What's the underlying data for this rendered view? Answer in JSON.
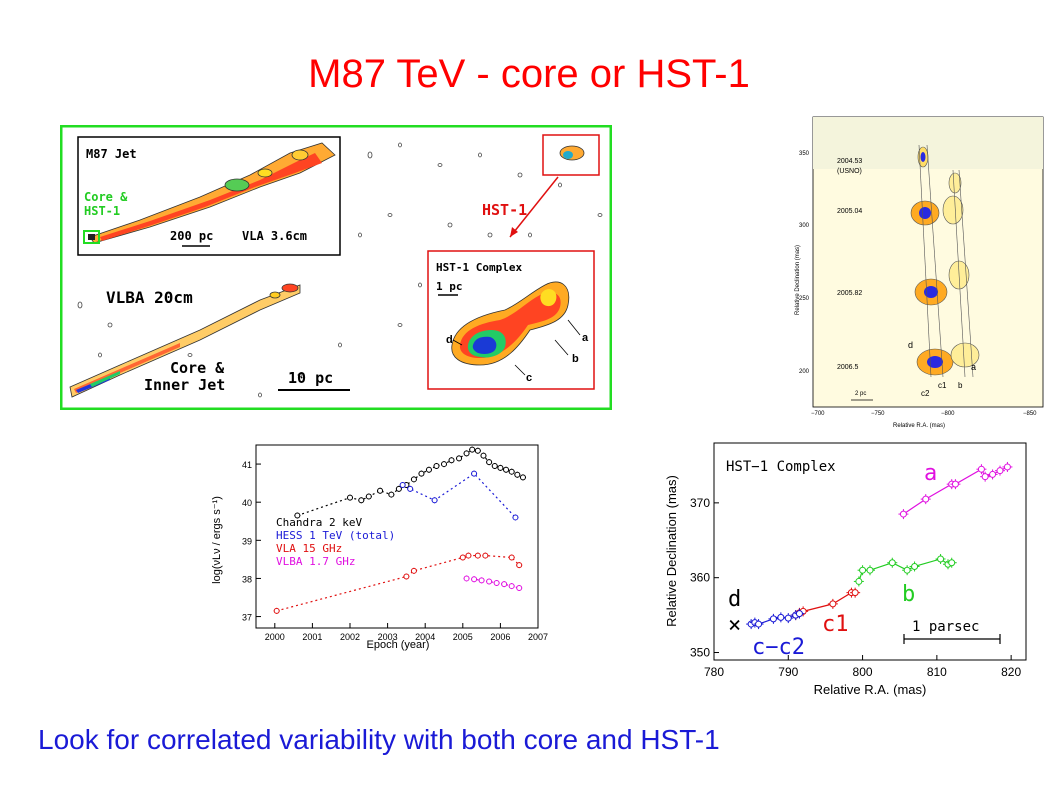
{
  "slide": {
    "title": "M87 TeV - core or HST-1",
    "caption": "Look for correlated variability with both core and HST-1"
  },
  "radio_map": {
    "inset_title": "M87 Jet",
    "core_label_1": "Core &",
    "core_label_2": "HST-1",
    "scale_200": "200 pc",
    "vla_label": "VLA 3.6cm",
    "vlba_label": "VLBA 20cm",
    "inner_jet_1": "Core &",
    "inner_jet_2": "Inner Jet",
    "scale_10": "10 pc",
    "hst1_label": "HST-1",
    "complex_title": "HST-1 Complex",
    "scale_1": "1 pc",
    "comp_a": "a",
    "comp_b": "b",
    "comp_c": "c",
    "comp_d": "d"
  },
  "vlba_epochs": {
    "epochs": [
      "2004.53",
      "(USNO)",
      "2005.04",
      "2005.82",
      "2006.5"
    ],
    "ylabel": "Relative Declination (mas)",
    "xlabel": "Relative R.A. (mas)",
    "yticks": [
      "350",
      "300",
      "250",
      "200"
    ],
    "xticks": [
      "−700",
      "−750",
      "−800",
      "−850"
    ],
    "scale": "2 pc",
    "labels": [
      "d",
      "c2",
      "c1",
      "b",
      "a"
    ]
  },
  "chart_data": [
    {
      "type": "line",
      "title": "",
      "xlabel": "Epoch (year)",
      "ylabel": "log(νLν / ergs s⁻¹)",
      "xlim": [
        1999.5,
        2007
      ],
      "ylim": [
        36.7,
        41.5
      ],
      "xticks": [
        "2000",
        "2001",
        "2002",
        "2003",
        "2004",
        "2005",
        "2006",
        "2007"
      ],
      "yticks": [
        "37",
        "38",
        "39",
        "40",
        "41"
      ],
      "series": [
        {
          "name": "Chandra 2 keV",
          "color": "#000000",
          "x": [
            2000.6,
            2002.0,
            2002.3,
            2002.5,
            2002.8,
            2003.1,
            2003.3,
            2003.5,
            2003.7,
            2003.9,
            2004.1,
            2004.3,
            2004.5,
            2004.7,
            2004.9,
            2005.1,
            2005.25,
            2005.4,
            2005.55,
            2005.7,
            2005.85,
            2006.0,
            2006.15,
            2006.3,
            2006.45,
            2006.6
          ],
          "y": [
            39.65,
            40.12,
            40.05,
            40.15,
            40.3,
            40.2,
            40.35,
            40.45,
            40.6,
            40.75,
            40.85,
            40.95,
            41.0,
            41.1,
            41.15,
            41.28,
            41.38,
            41.35,
            41.22,
            41.05,
            40.95,
            40.9,
            40.85,
            40.8,
            40.72,
            40.65
          ]
        },
        {
          "name": "HESS 1 TeV (total)",
          "color": "#1a1ad6",
          "x": [
            2003.4,
            2003.6,
            2004.25,
            2005.3,
            2006.4
          ],
          "y": [
            40.45,
            40.35,
            40.05,
            40.75,
            39.6
          ]
        },
        {
          "name": "VLA 15 GHz",
          "color": "#e01010",
          "x": [
            2000.05,
            2003.5,
            2003.7,
            2005.0,
            2005.15,
            2005.4,
            2005.6,
            2006.3,
            2006.5
          ],
          "y": [
            37.15,
            38.05,
            38.2,
            38.55,
            38.6,
            38.6,
            38.6,
            38.55,
            38.35
          ]
        },
        {
          "name": "VLBA 1.7 GHz",
          "color": "#e010e0",
          "x": [
            2005.1,
            2005.3,
            2005.5,
            2005.7,
            2005.9,
            2006.1,
            2006.3,
            2006.5
          ],
          "y": [
            38.0,
            37.98,
            37.95,
            37.92,
            37.88,
            37.85,
            37.8,
            37.75
          ]
        }
      ]
    },
    {
      "type": "scatter",
      "title": "HST−1 Complex",
      "xlabel": "Relative R.A. (mas)",
      "ylabel": "Relative Declination (mas)",
      "xlim": [
        780,
        822
      ],
      "ylim": [
        349,
        378
      ],
      "xticks": [
        "780",
        "790",
        "800",
        "810",
        "820"
      ],
      "yticks": [
        "350",
        "360",
        "370"
      ],
      "scalebar": "1 parsec",
      "marker_d": "×",
      "series": [
        {
          "name": "a",
          "color": "#e010e0",
          "x": [
            805.5,
            808.5,
            812.0,
            812.5,
            816.0,
            816.5,
            817.5,
            818.5,
            819.5
          ],
          "y": [
            368.5,
            370.5,
            372.5,
            372.5,
            374.5,
            373.5,
            373.8,
            374.3,
            374.8
          ]
        },
        {
          "name": "b",
          "color": "#22cc22",
          "x": [
            799.5,
            800.0,
            801.0,
            804.0,
            806.0,
            807.0,
            810.5,
            811.5,
            812.0
          ],
          "y": [
            359.5,
            361.0,
            361.0,
            362.0,
            361.0,
            361.5,
            362.5,
            361.8,
            362.0
          ]
        },
        {
          "name": "c1",
          "color": "#e01010",
          "x": [
            791.0,
            791.5,
            792.0,
            796.0,
            798.5,
            799.0
          ],
          "y": [
            355.0,
            355.3,
            355.5,
            356.5,
            358.0,
            358.0
          ]
        },
        {
          "name": "c−c2",
          "color": "#1a1ad6",
          "x": [
            785.0,
            785.5,
            786.0,
            788.0,
            789.0,
            790.0,
            791.0,
            791.5
          ],
          "y": [
            353.8,
            354.0,
            353.8,
            354.5,
            354.7,
            354.6,
            355.0,
            355.2
          ]
        }
      ],
      "label_d": "d"
    }
  ]
}
